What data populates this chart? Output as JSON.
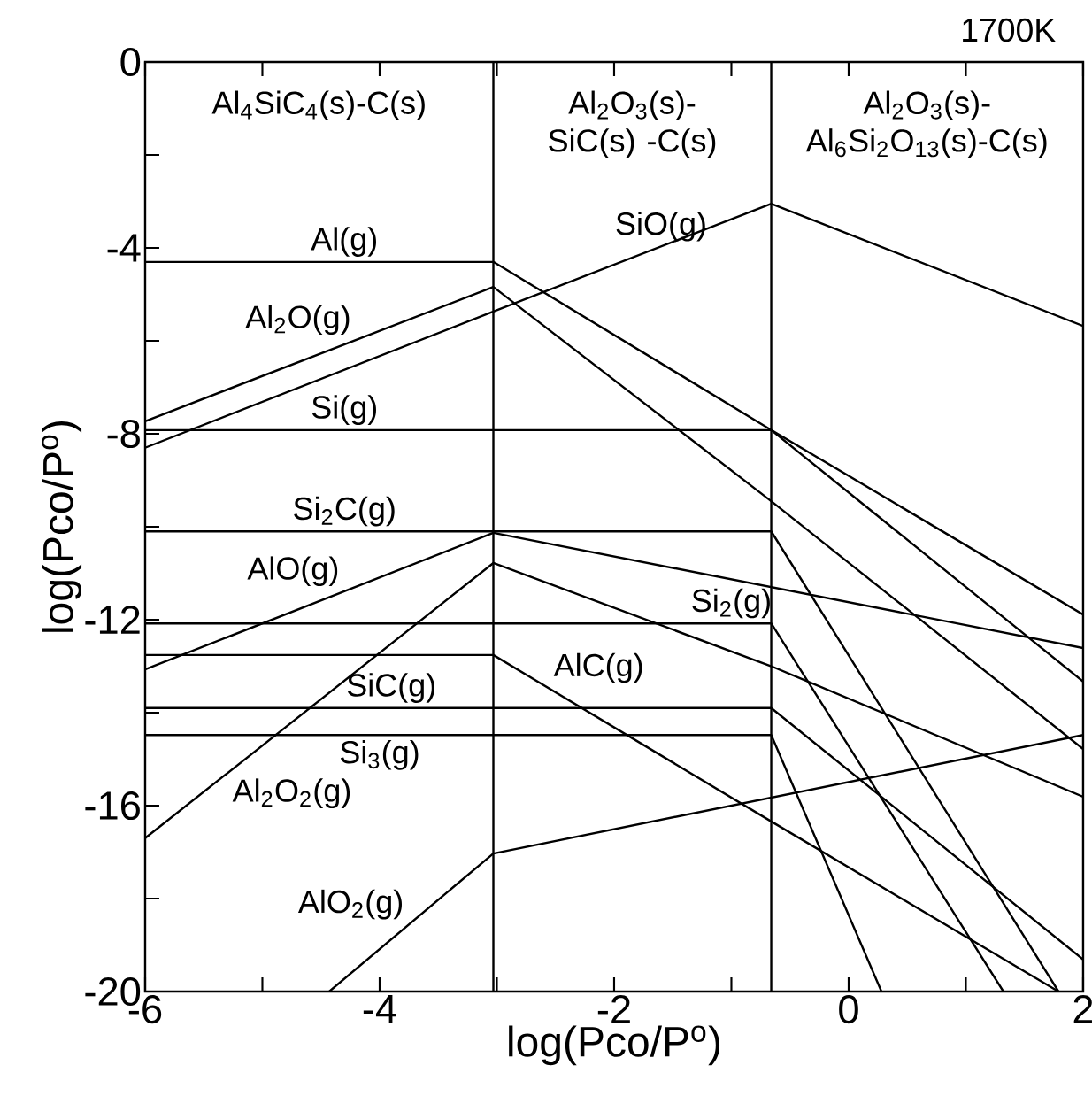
{
  "chart_data": {
    "type": "line",
    "title": "1700K",
    "xlabel": "log(Pco/P$^{o}$)",
    "ylabel": "log(Pco/P$^{o}$)",
    "xlim": [
      -6,
      2
    ],
    "ylim": [
      -20,
      0
    ],
    "xticks": [
      -6,
      {
        "value": -5,
        "label": null
      },
      -4,
      {
        "value": -3,
        "label": null
      },
      -2,
      {
        "value": -1,
        "label": null
      },
      0,
      {
        "value": 1,
        "label": null
      },
      2
    ],
    "yticks": [
      -20,
      {
        "value": -18,
        "label": null
      },
      -16,
      {
        "value": -14,
        "label": null
      },
      -12,
      {
        "value": -10,
        "label": null
      },
      -8,
      {
        "value": -6,
        "label": null
      },
      -4,
      {
        "value": -2,
        "label": null
      },
      0
    ],
    "ref_lines": [
      {
        "axis": "x",
        "value": -3.03,
        "color": "#000000"
      },
      {
        "axis": "x",
        "value": -0.66,
        "color": "#000000"
      }
    ],
    "annotations": [
      "Al$_{4}$SiC$_{4}$(s)-C(s)",
      "Al$_{2}$O$_{3}$(s)-SiC(s) -C(s)",
      "Al$_{2}$O$_{3}$(s)- Al$_{6}$Si$_{2}$O$_{13}$(s)-C(s)"
    ],
    "series": [
      {
        "name": "Al(g)",
        "color": "#000000",
        "x": [
          -6,
          -3.03,
          -0.66,
          2
        ],
        "values": [
          -4.3,
          -4.3,
          -7.92,
          -11.89
        ]
      },
      {
        "name": "Al$_{2}$O(g)",
        "color": "#000000",
        "x": [
          -6,
          -3.03,
          -0.66,
          2
        ],
        "values": [
          -7.73,
          -4.84,
          -9.45,
          -14.78
        ]
      },
      {
        "name": "SiO(g)",
        "color": "#000000",
        "x": [
          -6,
          -3.03,
          -0.66,
          2
        ],
        "values": [
          -8.3,
          -5.37,
          -3.05,
          -5.68
        ]
      },
      {
        "name": "Si(g)",
        "color": "#000000",
        "x": [
          -6,
          -0.66,
          2
        ],
        "values": [
          -7.92,
          -7.92,
          -13.33
        ]
      },
      {
        "name": "Si$_{2}$C(g)",
        "color": "#000000",
        "x": [
          -6,
          -0.66,
          1.79
        ],
        "values": [
          -10.1,
          -10.1,
          -20
        ]
      },
      {
        "name": "AlO(g)",
        "color": "#000000",
        "x": [
          -6,
          -3.03,
          2
        ],
        "values": [
          -13.07,
          -10.13,
          -12.61
        ]
      },
      {
        "name": "Si$_{2}$(g)",
        "color": "#000000",
        "x": [
          -6,
          -0.66,
          1.32
        ],
        "values": [
          -12.08,
          -12.08,
          -20
        ]
      },
      {
        "name": "AlC(g)",
        "color": "#000000",
        "x": [
          -6,
          -3.03,
          -0.66,
          1.79
        ],
        "values": [
          -12.76,
          -12.76,
          -16.34,
          -20
        ]
      },
      {
        "name": "SiC(g)",
        "color": "#000000",
        "x": [
          -6,
          -0.66,
          2
        ],
        "values": [
          -13.9,
          -13.9,
          -19.31
        ]
      },
      {
        "name": "Si$_{3}$(g)",
        "color": "#000000",
        "x": [
          -6,
          -0.66,
          0.28
        ],
        "values": [
          -14.48,
          -14.48,
          -20
        ]
      },
      {
        "name": "Al$_{2}$O$_{2}$(g)",
        "color": "#000000",
        "x": [
          -6,
          -3.03,
          -0.66,
          2
        ],
        "values": [
          -16.7,
          -10.78,
          -13.0,
          -15.81
        ]
      },
      {
        "name": "AlO$_{2}$(g)",
        "color": "#000000",
        "x": [
          -4.43,
          -3.03,
          2
        ],
        "values": [
          -20,
          -17.03,
          -14.48
        ]
      }
    ]
  }
}
